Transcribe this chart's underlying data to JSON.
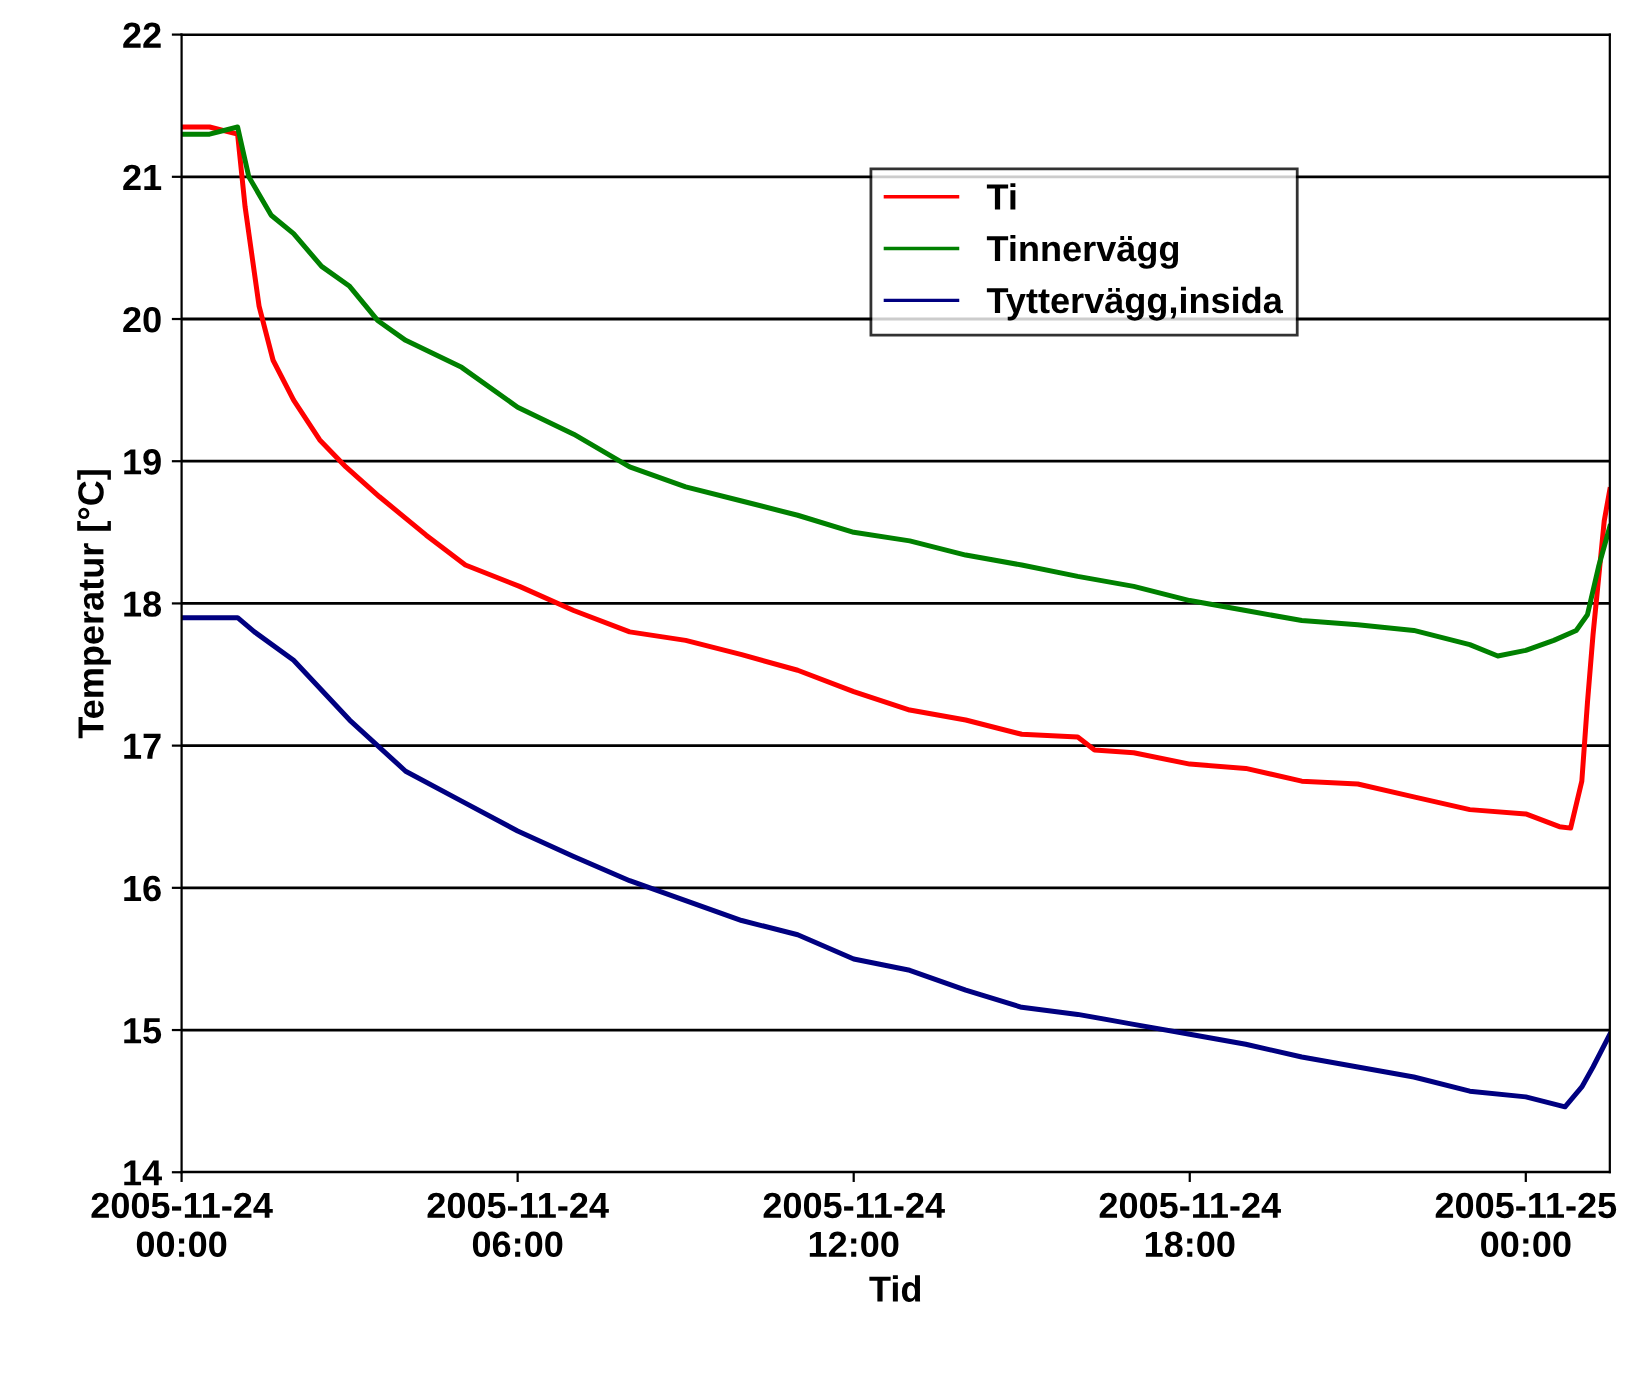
{
  "chart_data": {
    "type": "line",
    "xlabel": "Tid",
    "ylabel": "Temperatur [°C]",
    "xlim": [
      "2005-11-24T00:00",
      "2005-11-25T01:30"
    ],
    "xticks": [
      {
        "value": "2005-11-24T00:00",
        "label": "2005-11-24\n00:00"
      },
      {
        "value": "2005-11-24T06:00",
        "label": "2005-11-24\n06:00"
      },
      {
        "value": "2005-11-24T12:00",
        "label": "2005-11-24\n12:00"
      },
      {
        "value": "2005-11-24T18:00",
        "label": "2005-11-24\n18:00"
      },
      {
        "value": "2005-11-25T00:00",
        "label": "2005-11-25\n00:00"
      }
    ],
    "ylim": [
      14,
      22
    ],
    "yticks": [
      14,
      15,
      16,
      17,
      18,
      19,
      20,
      21,
      22
    ],
    "grid": "y",
    "legend": "top right",
    "marker": "none",
    "line_style": "solid",
    "series": [
      {
        "name": "Ti",
        "color": "#ff0000",
        "x": [
          "2005-11-24T00:00",
          "2005-11-24T00:30",
          "2005-11-24T01:00",
          "2005-11-24T01:08",
          "2005-11-24T01:23",
          "2005-11-24T01:38",
          "2005-11-24T02:00",
          "2005-11-24T02:28",
          "2005-11-24T02:56",
          "2005-11-24T03:32",
          "2005-11-24T04:22",
          "2005-11-24T05:04",
          "2005-11-24T06:02",
          "2005-11-24T07:00",
          "2005-11-24T08:00",
          "2005-11-24T09:00",
          "2005-11-24T10:00",
          "2005-11-24T11:00",
          "2005-11-24T12:00",
          "2005-11-24T13:00",
          "2005-11-24T14:00",
          "2005-11-24T15:00",
          "2005-11-24T16:00",
          "2005-11-24T16:18",
          "2005-11-24T17:00",
          "2005-11-24T18:00",
          "2005-11-24T19:00",
          "2005-11-24T20:00",
          "2005-11-24T21:00",
          "2005-11-24T22:00",
          "2005-11-24T23:00",
          "2005-11-25T00:00",
          "2005-11-25T00:36",
          "2005-11-25T00:48",
          "2005-11-25T01:00",
          "2005-11-25T01:06",
          "2005-11-25T01:12",
          "2005-11-25T01:24",
          "2005-11-25T01:30"
        ],
        "values": [
          21.35,
          21.35,
          21.3,
          20.79,
          20.09,
          19.71,
          19.43,
          19.15,
          18.96,
          18.75,
          18.48,
          18.27,
          18.12,
          17.95,
          17.8,
          17.74,
          17.64,
          17.53,
          17.38,
          17.25,
          17.18,
          17.08,
          17.06,
          16.97,
          16.95,
          16.87,
          16.84,
          16.75,
          16.73,
          16.64,
          16.55,
          16.52,
          16.43,
          16.42,
          16.75,
          17.3,
          17.78,
          18.58,
          18.8
        ]
      },
      {
        "name": "Tinnervägg",
        "color": "#008000",
        "x": [
          "2005-11-24T00:00",
          "2005-11-24T00:30",
          "2005-11-24T01:00",
          "2005-11-24T01:12",
          "2005-11-24T01:36",
          "2005-11-24T02:00",
          "2005-11-24T02:30",
          "2005-11-24T03:00",
          "2005-11-24T03:30",
          "2005-11-24T04:00",
          "2005-11-24T05:00",
          "2005-11-24T06:00",
          "2005-11-24T07:00",
          "2005-11-24T08:00",
          "2005-11-24T09:00",
          "2005-11-24T10:00",
          "2005-11-24T11:00",
          "2005-11-24T12:00",
          "2005-11-24T13:00",
          "2005-11-24T14:00",
          "2005-11-24T15:00",
          "2005-11-24T16:00",
          "2005-11-24T17:00",
          "2005-11-24T18:00",
          "2005-11-24T19:00",
          "2005-11-24T20:00",
          "2005-11-24T21:00",
          "2005-11-24T22:00",
          "2005-11-24T23:00",
          "2005-11-24T23:30",
          "2005-11-25T00:00",
          "2005-11-25T00:30",
          "2005-11-25T00:54",
          "2005-11-25T01:06",
          "2005-11-25T01:18",
          "2005-11-25T01:30"
        ],
        "values": [
          21.3,
          21.3,
          21.35,
          21.0,
          20.73,
          20.6,
          20.37,
          20.23,
          19.99,
          19.85,
          19.66,
          19.38,
          19.19,
          18.96,
          18.82,
          18.72,
          18.62,
          18.5,
          18.44,
          18.34,
          18.27,
          18.19,
          18.12,
          18.02,
          17.95,
          17.88,
          17.85,
          17.81,
          17.71,
          17.63,
          17.67,
          17.74,
          17.81,
          17.92,
          18.26,
          18.54
        ]
      },
      {
        "name": "Tyttervägg,insida",
        "color": "#000080",
        "x": [
          "2005-11-24T00:00",
          "2005-11-24T01:00",
          "2005-11-24T01:18",
          "2005-11-24T02:00",
          "2005-11-24T03:00",
          "2005-11-24T04:00",
          "2005-11-24T05:00",
          "2005-11-24T06:00",
          "2005-11-24T07:00",
          "2005-11-24T08:00",
          "2005-11-24T09:00",
          "2005-11-24T10:00",
          "2005-11-24T11:00",
          "2005-11-24T12:00",
          "2005-11-24T13:00",
          "2005-11-24T14:00",
          "2005-11-24T15:00",
          "2005-11-24T16:00",
          "2005-11-24T17:00",
          "2005-11-24T18:00",
          "2005-11-24T19:00",
          "2005-11-24T20:00",
          "2005-11-24T21:00",
          "2005-11-24T22:00",
          "2005-11-24T23:00",
          "2005-11-25T00:00",
          "2005-11-25T00:42",
          "2005-11-25T01:00",
          "2005-11-25T01:12",
          "2005-11-25T01:30"
        ],
        "values": [
          17.9,
          17.9,
          17.8,
          17.6,
          17.18,
          16.82,
          16.61,
          16.4,
          16.22,
          16.05,
          15.91,
          15.77,
          15.67,
          15.5,
          15.42,
          15.28,
          15.16,
          15.11,
          15.04,
          14.97,
          14.9,
          14.81,
          14.74,
          14.67,
          14.57,
          14.53,
          14.46,
          14.6,
          14.74,
          14.97
        ]
      }
    ]
  }
}
